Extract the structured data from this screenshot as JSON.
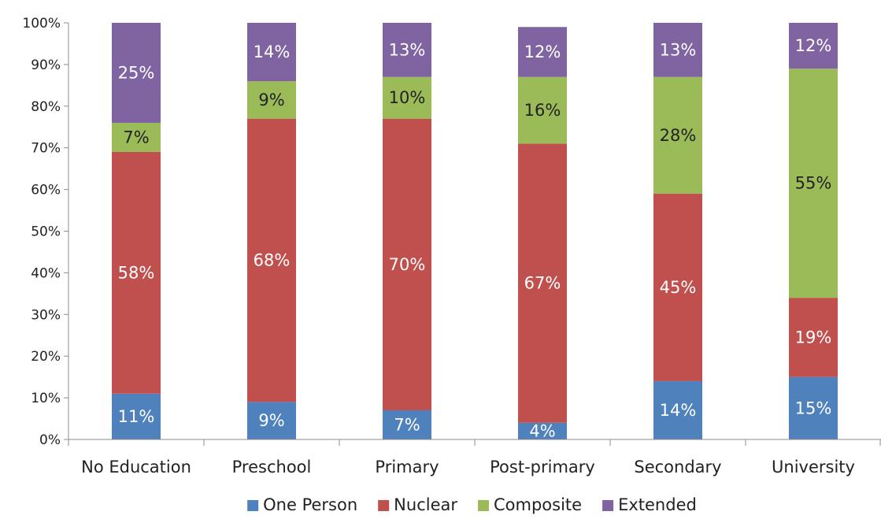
{
  "chart_data": {
    "type": "bar",
    "stacked": true,
    "categories": [
      "No Education",
      "Preschool",
      "Primary",
      "Post-primary",
      "Secondary",
      "University"
    ],
    "series": [
      {
        "name": "One Person",
        "color": "#4f81bd",
        "values": [
          11,
          9,
          7,
          4,
          14,
          15
        ],
        "labels": [
          "11%",
          "9%",
          "7%",
          "4%",
          "14%",
          "15%"
        ],
        "label_color": "#ffffff"
      },
      {
        "name": "Nuclear",
        "color": "#c0504d",
        "values": [
          58,
          68,
          70,
          67,
          45,
          19
        ],
        "labels": [
          "58%",
          "68%",
          "70%",
          "67%",
          "45%",
          "19%"
        ],
        "label_color": "#ffffff"
      },
      {
        "name": "Composite",
        "color": "#9bbb59",
        "values": [
          7,
          9,
          10,
          16,
          28,
          55
        ],
        "labels": [
          "7%",
          "9%",
          "10%",
          "16%",
          "28%",
          "55%"
        ],
        "label_color": "#222222"
      },
      {
        "name": "Extended",
        "color": "#8064a2",
        "values": [
          25,
          14,
          13,
          12,
          13,
          12
        ],
        "labels": [
          "25%",
          "14%",
          "13%",
          "12%",
          "13%",
          "12%"
        ],
        "label_color": "#ffffff"
      }
    ],
    "ylim": [
      0,
      100
    ],
    "yticks": [
      "0%",
      "10%",
      "20%",
      "30%",
      "40%",
      "50%",
      "60%",
      "70%",
      "80%",
      "90%",
      "100%"
    ],
    "grid": false,
    "legend_position": "bottom"
  }
}
